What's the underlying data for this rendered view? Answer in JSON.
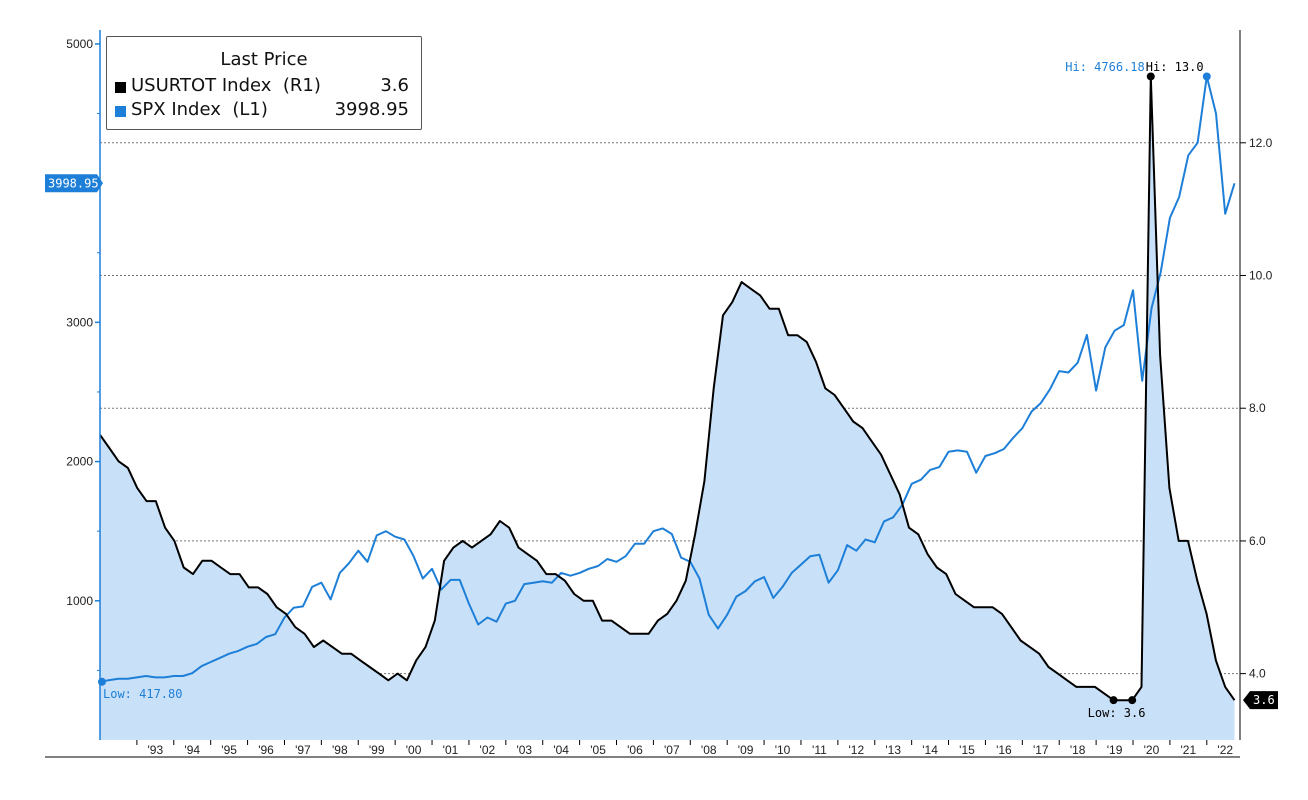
{
  "legend": {
    "title": "Last Price",
    "items": [
      {
        "name": "USURTOT Index  (R1)",
        "value": "3.6",
        "color": "#000000"
      },
      {
        "name": "SPX Index  (L1)",
        "value": "3998.95",
        "color": "#1e7fd8"
      }
    ]
  },
  "annotations": {
    "spx_hi": "Hi: 4766.18",
    "ur_hi": "Hi: 13.0",
    "spx_low": "Low: 417.80",
    "ur_low": "Low: 3.6",
    "spx_last": "3998.95",
    "ur_last": "3.6"
  },
  "chart_data": {
    "type": "line",
    "x_start": 1992.0,
    "x_end": 2022.75,
    "xlim": [
      1992.0,
      2022.9
    ],
    "y_left_lim": [
      0,
      5100
    ],
    "y_right_lim": [
      3.0,
      13.7
    ],
    "left_ticks": [
      1000,
      2000,
      3000,
      5000
    ],
    "right_ticks": [
      "4.0",
      "6.0",
      "8.0",
      "10.0",
      "12.0"
    ],
    "x_ticks": [
      "'93",
      "'94",
      "'95",
      "'96",
      "'97",
      "'98",
      "'99",
      "'00",
      "'01",
      "'02",
      "'03",
      "'04",
      "'05",
      "'06",
      "'07",
      "'08",
      "'09",
      "'10",
      "'11",
      "'12",
      "'13",
      "'14",
      "'15",
      "'16",
      "'17",
      "'18",
      "'19",
      "'20",
      "'21",
      "'22"
    ],
    "series": [
      {
        "name": "USURTOT Index  (R1)",
        "axis": "right",
        "style": "area",
        "color": "#000000",
        "fill": "#c9e1f8",
        "values": [
          7.6,
          7.4,
          7.2,
          7.1,
          6.8,
          6.6,
          6.6,
          6.2,
          6.0,
          5.6,
          5.5,
          5.7,
          5.7,
          5.6,
          5.5,
          5.5,
          5.3,
          5.3,
          5.2,
          5.0,
          4.9,
          4.7,
          4.6,
          4.4,
          4.5,
          4.4,
          4.3,
          4.3,
          4.2,
          4.1,
          4.0,
          3.9,
          4.0,
          3.9,
          4.2,
          4.4,
          4.8,
          5.7,
          5.9,
          6.0,
          5.9,
          6.0,
          6.1,
          6.3,
          6.2,
          5.9,
          5.8,
          5.7,
          5.5,
          5.5,
          5.4,
          5.2,
          5.1,
          5.1,
          4.8,
          4.8,
          4.7,
          4.6,
          4.6,
          4.6,
          4.8,
          4.9,
          5.1,
          5.4,
          6.1,
          6.9,
          8.3,
          9.4,
          9.6,
          9.9,
          9.8,
          9.7,
          9.5,
          9.5,
          9.1,
          9.1,
          9.0,
          8.7,
          8.3,
          8.2,
          8.0,
          7.8,
          7.7,
          7.5,
          7.3,
          7.0,
          6.7,
          6.2,
          6.1,
          5.8,
          5.6,
          5.5,
          5.2,
          5.1,
          5.0,
          5.0,
          5.0,
          4.9,
          4.7,
          4.5,
          4.4,
          4.3,
          4.1,
          4.0,
          3.9,
          3.8,
          3.8,
          3.8,
          3.7,
          3.6,
          3.6,
          3.6,
          3.8,
          13.0,
          8.8,
          6.8,
          6.0,
          6.0,
          5.4,
          4.9,
          4.2,
          3.8,
          3.6
        ]
      },
      {
        "name": "SPX Index  (L1)",
        "axis": "left",
        "style": "line",
        "color": "#1e7fd8",
        "values": [
          418,
          430,
          440,
          440,
          450,
          460,
          450,
          450,
          460,
          460,
          480,
          530,
          560,
          590,
          620,
          640,
          670,
          690,
          740,
          760,
          880,
          950,
          960,
          1100,
          1130,
          1010,
          1200,
          1270,
          1360,
          1280,
          1470,
          1500,
          1460,
          1440,
          1320,
          1160,
          1230,
          1080,
          1150,
          1150,
          980,
          830,
          880,
          850,
          980,
          1000,
          1120,
          1130,
          1140,
          1130,
          1200,
          1180,
          1200,
          1230,
          1250,
          1300,
          1280,
          1320,
          1410,
          1410,
          1500,
          1520,
          1480,
          1310,
          1280,
          1160,
          900,
          800,
          900,
          1030,
          1070,
          1140,
          1170,
          1020,
          1100,
          1200,
          1260,
          1320,
          1330,
          1130,
          1220,
          1400,
          1360,
          1440,
          1420,
          1570,
          1600,
          1690,
          1840,
          1870,
          1940,
          1960,
          2070,
          2080,
          2070,
          1920,
          2040,
          2060,
          2090,
          2170,
          2240,
          2360,
          2420,
          2520,
          2650,
          2640,
          2710,
          2910,
          2510,
          2820,
          2940,
          2980,
          3230,
          2580,
          3100,
          3360,
          3750,
          3900,
          4200,
          4290,
          4766,
          4500,
          3780,
          3999
        ]
      }
    ]
  }
}
